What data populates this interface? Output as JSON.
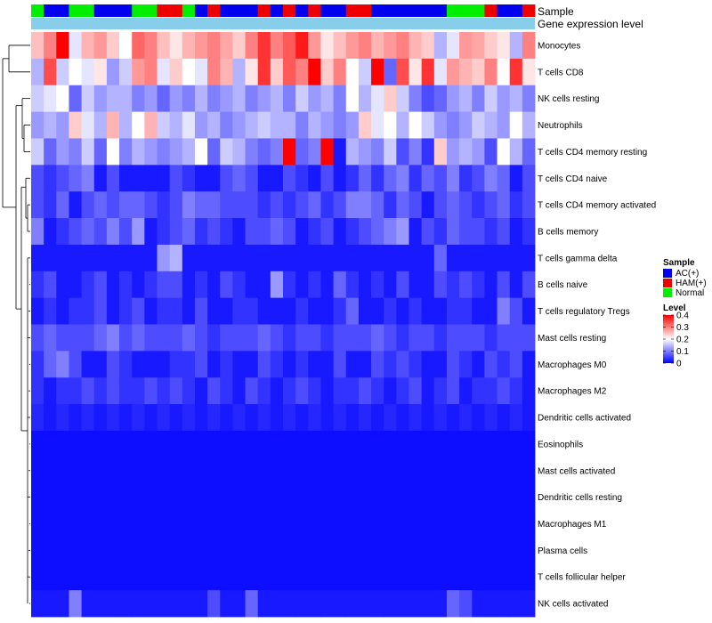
{
  "chart_data": {
    "type": "heatmap",
    "annotation_tracks": [
      {
        "name": "Sample"
      },
      {
        "name": "Gene expression level"
      }
    ],
    "groups": {
      "AC(+)": "#0000ee",
      "HAM(+)": "#ee0000",
      "Normal": "#00ee00"
    },
    "sample_groups": [
      "Normal",
      "AC(+)",
      "AC(+)",
      "Normal",
      "Normal",
      "AC(+)",
      "AC(+)",
      "AC(+)",
      "Normal",
      "Normal",
      "HAM(+)",
      "HAM(+)",
      "Normal",
      "AC(+)",
      "HAM(+)",
      "AC(+)",
      "AC(+)",
      "AC(+)",
      "HAM(+)",
      "AC(+)",
      "HAM(+)",
      "AC(+)",
      "HAM(+)",
      "AC(+)",
      "AC(+)",
      "HAM(+)",
      "HAM(+)",
      "AC(+)",
      "AC(+)",
      "AC(+)",
      "AC(+)",
      "AC(+)",
      "AC(+)",
      "Normal",
      "Normal",
      "Normal",
      "HAM(+)",
      "AC(+)",
      "AC(+)",
      "HAM(+)"
    ],
    "expression_level_color": "#87ceeb",
    "rows": [
      "Monocytes",
      "T cells CD8",
      "NK cells resting",
      "Neutrophils",
      "T cells CD4 memory resting",
      "T cells CD4 naive",
      "T cells CD4 memory activated",
      "B cells memory",
      "T cells gamma delta",
      "B cells naive",
      "T cells regulatory  Tregs",
      "Mast cells resting",
      "Macrophages M0",
      "Macrophages M2",
      "Dendritic cells activated",
      "Eosinophils",
      "Mast cells activated",
      "Dendritic cells resting",
      "Macrophages M1",
      "Plasma cells",
      "T cells follicular helper",
      "NK cells activated"
    ],
    "values": [
      [
        0.25,
        0.3,
        0.4,
        0.18,
        0.26,
        0.28,
        0.24,
        0.2,
        0.32,
        0.3,
        0.25,
        0.22,
        0.26,
        0.28,
        0.3,
        0.27,
        0.24,
        0.3,
        0.36,
        0.3,
        0.33,
        0.38,
        0.28,
        0.22,
        0.25,
        0.28,
        0.3,
        0.26,
        0.28,
        0.3,
        0.26,
        0.24,
        0.14,
        0.18,
        0.28,
        0.27,
        0.24,
        0.22,
        0.14,
        0.3
      ],
      [
        0.14,
        0.34,
        0.16,
        0.2,
        0.18,
        0.22,
        0.12,
        0.16,
        0.28,
        0.3,
        0.18,
        0.24,
        0.2,
        0.18,
        0.3,
        0.26,
        0.14,
        0.22,
        0.36,
        0.24,
        0.33,
        0.3,
        0.4,
        0.24,
        0.3,
        0.2,
        0.16,
        0.4,
        0.08,
        0.34,
        0.22,
        0.36,
        0.18,
        0.28,
        0.26,
        0.24,
        0.3,
        0.2,
        0.36,
        0.22
      ],
      [
        0.16,
        0.18,
        0.2,
        0.08,
        0.16,
        0.12,
        0.14,
        0.14,
        0.1,
        0.12,
        0.08,
        0.12,
        0.1,
        0.14,
        0.1,
        0.12,
        0.14,
        0.1,
        0.12,
        0.14,
        0.1,
        0.16,
        0.12,
        0.14,
        0.1,
        0.2,
        0.14,
        0.18,
        0.24,
        0.16,
        0.1,
        0.06,
        0.08,
        0.12,
        0.14,
        0.1,
        0.16,
        0.12,
        0.14,
        0.1
      ],
      [
        0.12,
        0.14,
        0.12,
        0.24,
        0.18,
        0.14,
        0.26,
        0.14,
        0.2,
        0.26,
        0.16,
        0.14,
        0.18,
        0.12,
        0.14,
        0.1,
        0.12,
        0.14,
        0.16,
        0.14,
        0.14,
        0.1,
        0.14,
        0.12,
        0.1,
        0.12,
        0.24,
        0.18,
        0.2,
        0.14,
        0.2,
        0.16,
        0.12,
        0.1,
        0.12,
        0.16,
        0.14,
        0.12,
        0.2,
        0.14
      ],
      [
        0.16,
        0.08,
        0.12,
        0.1,
        0.16,
        0.08,
        0.2,
        0.1,
        0.14,
        0.12,
        0.1,
        0.12,
        0.14,
        0.2,
        0.08,
        0.16,
        0.14,
        0.1,
        0.08,
        0.1,
        0.4,
        0.08,
        0.1,
        0.4,
        0.02,
        0.14,
        0.12,
        0.1,
        0.16,
        0.06,
        0.1,
        0.04,
        0.24,
        0.12,
        0.14,
        0.12,
        0.06,
        0.2,
        0.14,
        0.08
      ],
      [
        0.06,
        0.04,
        0.06,
        0.08,
        0.1,
        0.02,
        0.06,
        0.02,
        0.02,
        0.02,
        0.02,
        0.06,
        0.04,
        0.02,
        0.02,
        0.06,
        0.08,
        0.06,
        0.02,
        0.02,
        0.06,
        0.04,
        0.02,
        0.06,
        0.02,
        0.04,
        0.08,
        0.04,
        0.08,
        0.1,
        0.04,
        0.08,
        0.06,
        0.1,
        0.04,
        0.06,
        0.1,
        0.08,
        0.02,
        0.06
      ],
      [
        0.06,
        0.04,
        0.08,
        0.02,
        0.06,
        0.08,
        0.06,
        0.08,
        0.08,
        0.06,
        0.04,
        0.06,
        0.1,
        0.08,
        0.08,
        0.06,
        0.06,
        0.06,
        0.04,
        0.06,
        0.04,
        0.06,
        0.08,
        0.04,
        0.06,
        0.1,
        0.1,
        0.08,
        0.04,
        0.08,
        0.06,
        0.02,
        0.06,
        0.08,
        0.06,
        0.04,
        0.06,
        0.08,
        0.04,
        0.06
      ],
      [
        0.1,
        0.02,
        0.04,
        0.06,
        0.08,
        0.06,
        0.1,
        0.06,
        0.12,
        0.02,
        0.04,
        0.06,
        0.08,
        0.04,
        0.06,
        0.04,
        0.02,
        0.06,
        0.06,
        0.08,
        0.06,
        0.02,
        0.04,
        0.06,
        0.02,
        0.04,
        0.06,
        0.08,
        0.1,
        0.12,
        0.02,
        0.06,
        0.04,
        0.08,
        0.06,
        0.06,
        0.04,
        0.06,
        0.02,
        0.04
      ],
      [
        0.02,
        0.02,
        0.02,
        0.02,
        0.02,
        0.02,
        0.02,
        0.02,
        0.02,
        0.02,
        0.12,
        0.14,
        0.02,
        0.02,
        0.02,
        0.02,
        0.02,
        0.02,
        0.02,
        0.02,
        0.02,
        0.02,
        0.02,
        0.02,
        0.02,
        0.02,
        0.02,
        0.02,
        0.02,
        0.02,
        0.02,
        0.02,
        0.08,
        0.02,
        0.02,
        0.02,
        0.02,
        0.02,
        0.02,
        0.02
      ],
      [
        0.04,
        0.06,
        0.02,
        0.02,
        0.04,
        0.06,
        0.02,
        0.04,
        0.02,
        0.04,
        0.06,
        0.06,
        0.02,
        0.04,
        0.02,
        0.06,
        0.04,
        0.02,
        0.02,
        0.12,
        0.04,
        0.02,
        0.04,
        0.02,
        0.08,
        0.04,
        0.02,
        0.04,
        0.02,
        0.06,
        0.02,
        0.02,
        0.06,
        0.04,
        0.06,
        0.04,
        0.02,
        0.06,
        0.02,
        0.06
      ],
      [
        0.02,
        0.04,
        0.02,
        0.04,
        0.04,
        0.06,
        0.02,
        0.04,
        0.06,
        0.02,
        0.04,
        0.04,
        0.02,
        0.06,
        0.02,
        0.02,
        0.04,
        0.04,
        0.02,
        0.02,
        0.02,
        0.04,
        0.02,
        0.02,
        0.04,
        0.08,
        0.02,
        0.02,
        0.04,
        0.02,
        0.04,
        0.02,
        0.02,
        0.04,
        0.04,
        0.02,
        0.02,
        0.1,
        0.06,
        0.02
      ],
      [
        0.06,
        0.08,
        0.06,
        0.06,
        0.06,
        0.08,
        0.1,
        0.06,
        0.08,
        0.06,
        0.06,
        0.06,
        0.08,
        0.06,
        0.04,
        0.06,
        0.06,
        0.06,
        0.08,
        0.06,
        0.04,
        0.06,
        0.06,
        0.04,
        0.06,
        0.06,
        0.06,
        0.08,
        0.06,
        0.04,
        0.06,
        0.06,
        0.04,
        0.06,
        0.06,
        0.06,
        0.04,
        0.06,
        0.06,
        0.06
      ],
      [
        0.04,
        0.08,
        0.1,
        0.06,
        0.02,
        0.02,
        0.06,
        0.04,
        0.02,
        0.02,
        0.02,
        0.04,
        0.04,
        0.06,
        0.02,
        0.04,
        0.02,
        0.02,
        0.06,
        0.04,
        0.02,
        0.04,
        0.02,
        0.02,
        0.06,
        0.02,
        0.02,
        0.06,
        0.04,
        0.06,
        0.04,
        0.02,
        0.02,
        0.06,
        0.04,
        0.02,
        0.06,
        0.04,
        0.06,
        0.02
      ],
      [
        0.04,
        0.02,
        0.04,
        0.04,
        0.06,
        0.04,
        0.06,
        0.04,
        0.04,
        0.06,
        0.04,
        0.06,
        0.04,
        0.02,
        0.06,
        0.04,
        0.02,
        0.06,
        0.04,
        0.02,
        0.04,
        0.06,
        0.04,
        0.02,
        0.04,
        0.04,
        0.06,
        0.04,
        0.02,
        0.04,
        0.06,
        0.02,
        0.04,
        0.06,
        0.02,
        0.04,
        0.04,
        0.06,
        0.04,
        0.02
      ],
      [
        0.03,
        0.02,
        0.03,
        0.02,
        0.03,
        0.02,
        0.03,
        0.02,
        0.03,
        0.02,
        0.03,
        0.02,
        0.03,
        0.02,
        0.03,
        0.02,
        0.03,
        0.02,
        0.03,
        0.02,
        0.03,
        0.02,
        0.03,
        0.02,
        0.03,
        0.02,
        0.03,
        0.02,
        0.03,
        0.02,
        0.03,
        0.02,
        0.03,
        0.02,
        0.03,
        0.02,
        0.03,
        0.02,
        0.03,
        0.02
      ],
      [
        0.01,
        0.01,
        0.01,
        0.01,
        0.01,
        0.01,
        0.01,
        0.01,
        0.01,
        0.01,
        0.01,
        0.01,
        0.01,
        0.01,
        0.01,
        0.01,
        0.01,
        0.01,
        0.01,
        0.01,
        0.01,
        0.01,
        0.01,
        0.01,
        0.01,
        0.01,
        0.01,
        0.01,
        0.01,
        0.01,
        0.01,
        0.01,
        0.01,
        0.01,
        0.01,
        0.01,
        0.01,
        0.01,
        0.01,
        0.01
      ],
      [
        0.01,
        0.01,
        0.01,
        0.01,
        0.01,
        0.01,
        0.01,
        0.01,
        0.01,
        0.01,
        0.01,
        0.01,
        0.01,
        0.01,
        0.01,
        0.01,
        0.01,
        0.01,
        0.01,
        0.01,
        0.01,
        0.01,
        0.01,
        0.01,
        0.01,
        0.01,
        0.01,
        0.01,
        0.01,
        0.01,
        0.01,
        0.01,
        0.01,
        0.01,
        0.01,
        0.01,
        0.01,
        0.01,
        0.01,
        0.01
      ],
      [
        0.01,
        0.01,
        0.01,
        0.01,
        0.01,
        0.01,
        0.01,
        0.01,
        0.01,
        0.01,
        0.01,
        0.01,
        0.01,
        0.01,
        0.01,
        0.01,
        0.01,
        0.01,
        0.01,
        0.01,
        0.01,
        0.01,
        0.01,
        0.01,
        0.01,
        0.01,
        0.01,
        0.01,
        0.01,
        0.01,
        0.01,
        0.01,
        0.01,
        0.01,
        0.01,
        0.01,
        0.01,
        0.01,
        0.01,
        0.01
      ],
      [
        0.01,
        0.01,
        0.01,
        0.01,
        0.01,
        0.01,
        0.01,
        0.01,
        0.01,
        0.01,
        0.01,
        0.01,
        0.01,
        0.01,
        0.01,
        0.01,
        0.01,
        0.01,
        0.01,
        0.01,
        0.01,
        0.01,
        0.01,
        0.01,
        0.01,
        0.01,
        0.01,
        0.01,
        0.01,
        0.01,
        0.01,
        0.01,
        0.01,
        0.01,
        0.01,
        0.01,
        0.01,
        0.01,
        0.01,
        0.01
      ],
      [
        0.01,
        0.01,
        0.01,
        0.01,
        0.01,
        0.01,
        0.01,
        0.01,
        0.01,
        0.01,
        0.01,
        0.01,
        0.01,
        0.01,
        0.01,
        0.01,
        0.01,
        0.01,
        0.01,
        0.01,
        0.01,
        0.01,
        0.01,
        0.01,
        0.01,
        0.01,
        0.01,
        0.01,
        0.01,
        0.01,
        0.01,
        0.01,
        0.01,
        0.01,
        0.01,
        0.01,
        0.01,
        0.01,
        0.01,
        0.01
      ],
      [
        0.01,
        0.01,
        0.01,
        0.01,
        0.01,
        0.01,
        0.01,
        0.01,
        0.01,
        0.01,
        0.01,
        0.01,
        0.01,
        0.01,
        0.01,
        0.01,
        0.01,
        0.01,
        0.01,
        0.01,
        0.01,
        0.01,
        0.01,
        0.01,
        0.01,
        0.01,
        0.01,
        0.01,
        0.01,
        0.01,
        0.01,
        0.01,
        0.01,
        0.01,
        0.01,
        0.01,
        0.01,
        0.01,
        0.01,
        0.01
      ],
      [
        0.02,
        0.02,
        0.02,
        0.1,
        0.02,
        0.02,
        0.02,
        0.02,
        0.02,
        0.02,
        0.02,
        0.02,
        0.02,
        0.02,
        0.06,
        0.02,
        0.02,
        0.08,
        0.02,
        0.02,
        0.02,
        0.02,
        0.02,
        0.02,
        0.02,
        0.02,
        0.02,
        0.02,
        0.02,
        0.02,
        0.02,
        0.02,
        0.02,
        0.08,
        0.06,
        0.02,
        0.02,
        0.02,
        0.02,
        0.02
      ]
    ],
    "color_scale": {
      "min": 0,
      "mid": 0.2,
      "max": 0.4,
      "low_color": "#0000ff",
      "mid_color": "#ffffff",
      "high_color": "#ff0000"
    },
    "legend": {
      "sample_title": "Sample",
      "sample_entries": [
        {
          "label": "AC(+)",
          "color": "#0000ee"
        },
        {
          "label": "HAM(+)",
          "color": "#ee0000"
        },
        {
          "label": "Normal",
          "color": "#00ee00"
        }
      ],
      "level_title": "Level",
      "level_ticks": [
        "0.4",
        "0.3",
        "0.2",
        "0.1",
        "0"
      ],
      "placement": "right"
    }
  }
}
